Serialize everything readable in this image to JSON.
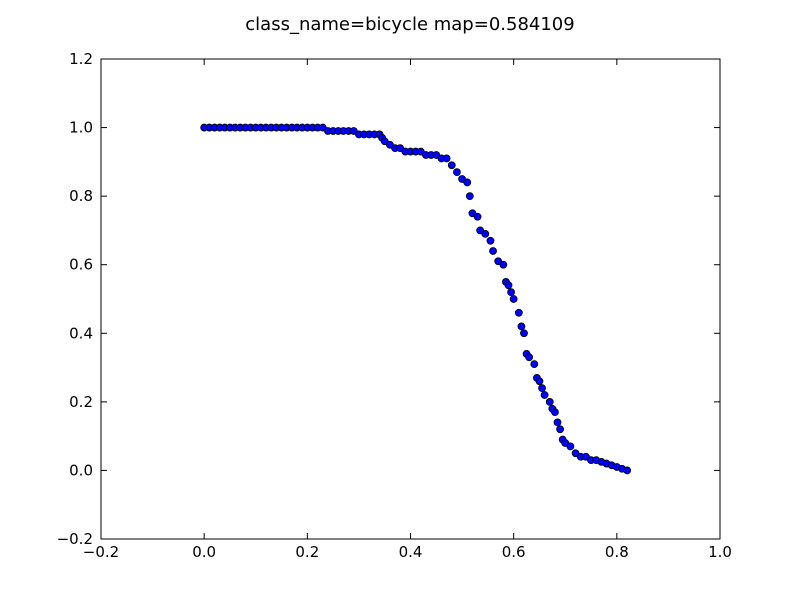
{
  "chart_data": {
    "type": "scatter",
    "title": "class_name=bicycle map=0.584109",
    "x": [
      0.0,
      0.01,
      0.02,
      0.03,
      0.04,
      0.05,
      0.06,
      0.07,
      0.08,
      0.09,
      0.1,
      0.11,
      0.12,
      0.13,
      0.14,
      0.15,
      0.16,
      0.17,
      0.18,
      0.19,
      0.2,
      0.21,
      0.22,
      0.23,
      0.24,
      0.25,
      0.26,
      0.27,
      0.28,
      0.29,
      0.3,
      0.31,
      0.32,
      0.33,
      0.34,
      0.345,
      0.35,
      0.36,
      0.37,
      0.38,
      0.39,
      0.4,
      0.41,
      0.42,
      0.43,
      0.44,
      0.45,
      0.46,
      0.47,
      0.48,
      0.49,
      0.5,
      0.51,
      0.515,
      0.52,
      0.53,
      0.535,
      0.545,
      0.555,
      0.56,
      0.57,
      0.58,
      0.585,
      0.59,
      0.595,
      0.6,
      0.61,
      0.615,
      0.62,
      0.625,
      0.63,
      0.64,
      0.645,
      0.65,
      0.655,
      0.66,
      0.67,
      0.675,
      0.68,
      0.685,
      0.69,
      0.695,
      0.7,
      0.71,
      0.72,
      0.73,
      0.74,
      0.75,
      0.76,
      0.77,
      0.78,
      0.79,
      0.8,
      0.81,
      0.82
    ],
    "values": [
      1.0,
      1.0,
      1.0,
      1.0,
      1.0,
      1.0,
      1.0,
      1.0,
      1.0,
      1.0,
      1.0,
      1.0,
      1.0,
      1.0,
      1.0,
      1.0,
      1.0,
      1.0,
      1.0,
      1.0,
      1.0,
      1.0,
      1.0,
      1.0,
      0.99,
      0.99,
      0.99,
      0.99,
      0.99,
      0.99,
      0.98,
      0.98,
      0.98,
      0.98,
      0.98,
      0.97,
      0.96,
      0.95,
      0.94,
      0.94,
      0.93,
      0.93,
      0.93,
      0.93,
      0.92,
      0.92,
      0.92,
      0.91,
      0.91,
      0.89,
      0.87,
      0.85,
      0.84,
      0.8,
      0.75,
      0.74,
      0.7,
      0.69,
      0.67,
      0.64,
      0.61,
      0.6,
      0.55,
      0.54,
      0.52,
      0.5,
      0.46,
      0.42,
      0.4,
      0.34,
      0.33,
      0.31,
      0.27,
      0.26,
      0.24,
      0.22,
      0.2,
      0.18,
      0.17,
      0.14,
      0.12,
      0.09,
      0.08,
      0.07,
      0.05,
      0.04,
      0.04,
      0.03,
      0.03,
      0.025,
      0.02,
      0.015,
      0.01,
      0.005,
      0.0
    ],
    "color": "#0000ff",
    "xlim": [
      -0.2,
      1.0
    ],
    "xticks": [
      {
        "value": -0.2,
        "label": "−0.2"
      },
      {
        "value": 0.0,
        "label": "0.0"
      },
      0.2,
      0.4,
      0.6,
      0.8,
      {
        "value": 1.0,
        "label": "1.0"
      }
    ],
    "ylim": [
      -0.2,
      1.2
    ],
    "yticks": [
      {
        "value": -0.2,
        "label": "−0.2"
      },
      {
        "value": 0.0,
        "label": "0.0"
      },
      0.2,
      0.4,
      0.6,
      0.8,
      {
        "value": 1.0,
        "label": "1.0"
      },
      1.2
    ]
  }
}
